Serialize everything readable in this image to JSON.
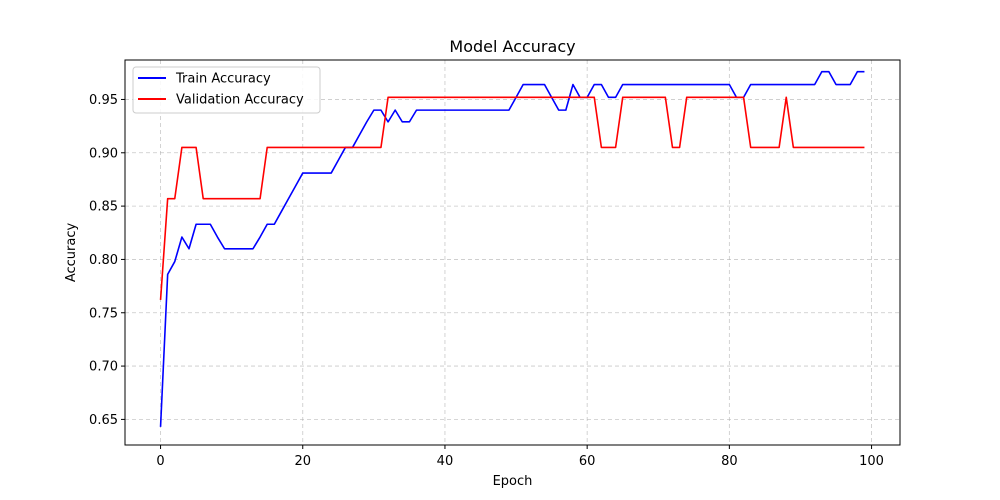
{
  "chart_data": {
    "type": "line",
    "title": "Model Accuracy",
    "xlabel": "Epoch",
    "ylabel": "Accuracy",
    "xlim": [
      -5,
      104
    ],
    "ylim": [
      0.626,
      0.987
    ],
    "xticks": [
      0,
      20,
      40,
      60,
      80,
      100
    ],
    "yticks": [
      0.65,
      0.7,
      0.75,
      0.8,
      0.85,
      0.9,
      0.95
    ],
    "ytick_labels": [
      "0.65",
      "0.70",
      "0.75",
      "0.80",
      "0.85",
      "0.90",
      "0.95"
    ],
    "grid": true,
    "legend_position": "upper-left",
    "x": [
      0,
      1,
      2,
      3,
      4,
      5,
      6,
      7,
      8,
      9,
      10,
      11,
      12,
      13,
      14,
      15,
      16,
      17,
      18,
      19,
      20,
      21,
      22,
      23,
      24,
      25,
      26,
      27,
      28,
      29,
      30,
      31,
      32,
      33,
      34,
      35,
      36,
      37,
      38,
      39,
      40,
      41,
      42,
      43,
      44,
      45,
      46,
      47,
      48,
      49,
      50,
      51,
      52,
      53,
      54,
      55,
      56,
      57,
      58,
      59,
      60,
      61,
      62,
      63,
      64,
      65,
      66,
      67,
      68,
      69,
      70,
      71,
      72,
      73,
      74,
      75,
      76,
      77,
      78,
      79,
      80,
      81,
      82,
      83,
      84,
      85,
      86,
      87,
      88,
      89,
      90,
      91,
      92,
      93,
      94,
      95,
      96,
      97,
      98,
      99
    ],
    "series": [
      {
        "name": "Train Accuracy",
        "color": "#0000ff",
        "values": [
          0.643,
          0.786,
          0.798,
          0.821,
          0.81,
          0.833,
          0.833,
          0.833,
          0.821,
          0.81,
          0.81,
          0.81,
          0.81,
          0.81,
          0.821,
          0.833,
          0.833,
          0.845,
          0.857,
          0.869,
          0.881,
          0.881,
          0.881,
          0.881,
          0.881,
          0.893,
          0.905,
          0.905,
          0.917,
          0.929,
          0.94,
          0.94,
          0.929,
          0.94,
          0.929,
          0.929,
          0.94,
          0.94,
          0.94,
          0.94,
          0.94,
          0.94,
          0.94,
          0.94,
          0.94,
          0.94,
          0.94,
          0.94,
          0.94,
          0.94,
          0.952,
          0.964,
          0.964,
          0.964,
          0.964,
          0.952,
          0.94,
          0.94,
          0.964,
          0.952,
          0.952,
          0.964,
          0.964,
          0.952,
          0.952,
          0.964,
          0.964,
          0.964,
          0.964,
          0.964,
          0.964,
          0.964,
          0.964,
          0.964,
          0.964,
          0.964,
          0.964,
          0.964,
          0.964,
          0.964,
          0.964,
          0.952,
          0.952,
          0.964,
          0.964,
          0.964,
          0.964,
          0.964,
          0.964,
          0.964,
          0.964,
          0.964,
          0.964,
          0.976,
          0.976,
          0.964,
          0.964,
          0.964,
          0.976,
          0.976
        ]
      },
      {
        "name": "Validation Accuracy",
        "color": "#ff0000",
        "values": [
          0.762,
          0.857,
          0.857,
          0.905,
          0.905,
          0.905,
          0.857,
          0.857,
          0.857,
          0.857,
          0.857,
          0.857,
          0.857,
          0.857,
          0.857,
          0.905,
          0.905,
          0.905,
          0.905,
          0.905,
          0.905,
          0.905,
          0.905,
          0.905,
          0.905,
          0.905,
          0.905,
          0.905,
          0.905,
          0.905,
          0.905,
          0.905,
          0.952,
          0.952,
          0.952,
          0.952,
          0.952,
          0.952,
          0.952,
          0.952,
          0.952,
          0.952,
          0.952,
          0.952,
          0.952,
          0.952,
          0.952,
          0.952,
          0.952,
          0.952,
          0.952,
          0.952,
          0.952,
          0.952,
          0.952,
          0.952,
          0.952,
          0.952,
          0.952,
          0.952,
          0.952,
          0.952,
          0.905,
          0.905,
          0.905,
          0.952,
          0.952,
          0.952,
          0.952,
          0.952,
          0.952,
          0.952,
          0.905,
          0.905,
          0.952,
          0.952,
          0.952,
          0.952,
          0.952,
          0.952,
          0.952,
          0.952,
          0.952,
          0.905,
          0.905,
          0.905,
          0.905,
          0.905,
          0.952,
          0.905,
          0.905,
          0.905,
          0.905,
          0.905,
          0.905,
          0.905,
          0.905,
          0.905,
          0.905,
          0.905
        ]
      }
    ]
  }
}
